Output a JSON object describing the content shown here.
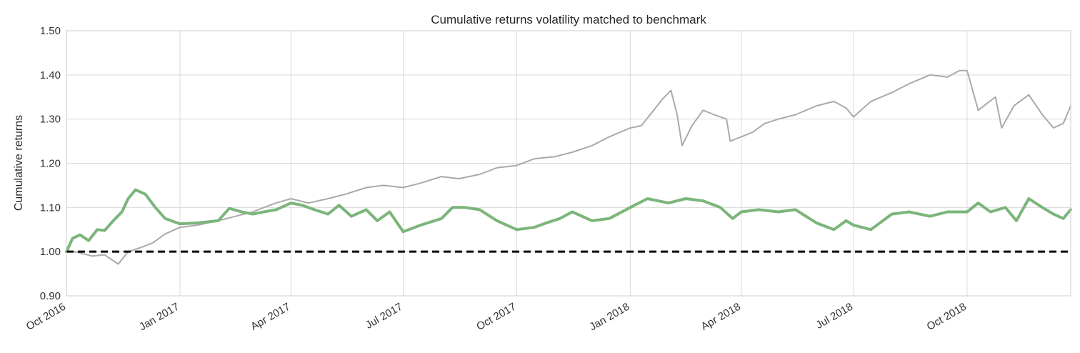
{
  "chart_data": {
    "type": "line",
    "title": "Cumulative returns volatility matched to benchmark",
    "xlabel": "",
    "ylabel": "Cumulative returns",
    "xlim": [
      "2016-10-01",
      "2018-12-24"
    ],
    "ylim": [
      0.9,
      1.5
    ],
    "grid": true,
    "legend": "none",
    "y_ticks": [
      {
        "value": 0.9,
        "label": "0.90"
      },
      {
        "value": 1.0,
        "label": "1.00"
      },
      {
        "value": 1.1,
        "label": "1.10"
      },
      {
        "value": 1.2,
        "label": "1.20"
      },
      {
        "value": 1.3,
        "label": "1.30"
      },
      {
        "value": 1.4,
        "label": "1.40"
      },
      {
        "value": 1.5,
        "label": "1.50"
      }
    ],
    "x_ticks": [
      {
        "value": "2016-10-01",
        "label": "Oct 2016"
      },
      {
        "value": "2017-01-01",
        "label": "Jan 2017"
      },
      {
        "value": "2017-04-01",
        "label": "Apr 2017"
      },
      {
        "value": "2017-07-01",
        "label": "Jul 2017"
      },
      {
        "value": "2017-10-01",
        "label": "Oct 2017"
      },
      {
        "value": "2018-01-01",
        "label": "Jan 2018"
      },
      {
        "value": "2018-04-01",
        "label": "Apr 2018"
      },
      {
        "value": "2018-07-01",
        "label": "Jul 2018"
      },
      {
        "value": "2018-10-01",
        "label": "Oct 2018"
      }
    ],
    "reference_line": {
      "y": 1.0,
      "style": "dashed",
      "color": "#000000"
    },
    "series": [
      {
        "color": "#aaaaaa",
        "x": [
          "2016-10-01",
          "2016-10-08",
          "2016-10-15",
          "2016-10-22",
          "2016-11-01",
          "2016-11-05",
          "2016-11-12",
          "2016-11-20",
          "2016-12-01",
          "2016-12-10",
          "2016-12-20",
          "2017-01-01",
          "2017-01-15",
          "2017-02-01",
          "2017-02-15",
          "2017-03-01",
          "2017-03-10",
          "2017-03-20",
          "2017-04-01",
          "2017-04-15",
          "2017-05-01",
          "2017-05-15",
          "2017-06-01",
          "2017-06-15",
          "2017-07-01",
          "2017-07-15",
          "2017-08-01",
          "2017-08-15",
          "2017-09-01",
          "2017-09-15",
          "2017-10-01",
          "2017-10-15",
          "2017-11-01",
          "2017-11-15",
          "2017-12-01",
          "2017-12-15",
          "2018-01-01",
          "2018-01-10",
          "2018-01-20",
          "2018-01-27",
          "2018-02-03",
          "2018-02-08",
          "2018-02-12",
          "2018-02-20",
          "2018-03-01",
          "2018-03-10",
          "2018-03-20",
          "2018-03-23",
          "2018-04-01",
          "2018-04-10",
          "2018-04-20",
          "2018-05-01",
          "2018-05-15",
          "2018-06-01",
          "2018-06-15",
          "2018-06-25",
          "2018-07-01",
          "2018-07-15",
          "2018-08-01",
          "2018-08-15",
          "2018-09-01",
          "2018-09-15",
          "2018-09-25",
          "2018-10-01",
          "2018-10-03",
          "2018-10-10",
          "2018-10-24",
          "2018-10-29",
          "2018-11-08",
          "2018-11-20",
          "2018-12-01",
          "2018-12-10",
          "2018-12-18",
          "2018-12-24"
        ],
        "y": [
          1.0,
          1.0,
          0.995,
          0.99,
          0.993,
          0.985,
          0.972,
          1.0,
          1.01,
          1.02,
          1.04,
          1.055,
          1.06,
          1.07,
          1.08,
          1.09,
          1.1,
          1.11,
          1.12,
          1.11,
          1.12,
          1.13,
          1.145,
          1.15,
          1.145,
          1.155,
          1.17,
          1.165,
          1.175,
          1.19,
          1.195,
          1.21,
          1.215,
          1.225,
          1.24,
          1.26,
          1.28,
          1.285,
          1.32,
          1.345,
          1.365,
          1.31,
          1.24,
          1.285,
          1.32,
          1.31,
          1.3,
          1.25,
          1.26,
          1.27,
          1.29,
          1.3,
          1.31,
          1.33,
          1.34,
          1.325,
          1.305,
          1.34,
          1.36,
          1.38,
          1.4,
          1.395,
          1.41,
          1.41,
          1.39,
          1.32,
          1.35,
          1.28,
          1.33,
          1.355,
          1.31,
          1.28,
          1.29,
          1.33
        ]
      },
      {
        "color": "#7bb57a",
        "x": [
          "2016-10-01",
          "2016-10-06",
          "2016-10-12",
          "2016-10-19",
          "2016-10-26",
          "2016-11-01",
          "2016-11-08",
          "2016-11-15",
          "2016-11-20",
          "2016-11-26",
          "2016-12-04",
          "2016-12-12",
          "2016-12-20",
          "2017-01-01",
          "2017-01-15",
          "2017-02-01",
          "2017-02-10",
          "2017-02-20",
          "2017-03-01",
          "2017-03-10",
          "2017-03-20",
          "2017-04-01",
          "2017-04-10",
          "2017-04-20",
          "2017-05-01",
          "2017-05-10",
          "2017-05-20",
          "2017-06-01",
          "2017-06-10",
          "2017-06-20",
          "2017-07-01",
          "2017-07-15",
          "2017-08-01",
          "2017-08-10",
          "2017-08-20",
          "2017-09-01",
          "2017-09-15",
          "2017-10-01",
          "2017-10-15",
          "2017-10-25",
          "2017-11-05",
          "2017-11-15",
          "2017-12-01",
          "2017-12-15",
          "2018-01-01",
          "2018-01-15",
          "2018-02-01",
          "2018-02-15",
          "2018-03-01",
          "2018-03-15",
          "2018-03-25",
          "2018-04-01",
          "2018-04-15",
          "2018-05-01",
          "2018-05-15",
          "2018-06-01",
          "2018-06-15",
          "2018-06-25",
          "2018-07-01",
          "2018-07-15",
          "2018-08-01",
          "2018-08-15",
          "2018-09-01",
          "2018-09-15",
          "2018-10-01",
          "2018-10-10",
          "2018-10-20",
          "2018-11-01",
          "2018-11-10",
          "2018-11-20",
          "2018-12-01",
          "2018-12-10",
          "2018-12-18",
          "2018-12-24"
        ],
        "y": [
          1.0,
          1.03,
          1.038,
          1.025,
          1.05,
          1.048,
          1.07,
          1.09,
          1.12,
          1.14,
          1.13,
          1.1,
          1.075,
          1.063,
          1.065,
          1.07,
          1.098,
          1.09,
          1.085,
          1.09,
          1.095,
          1.11,
          1.105,
          1.095,
          1.085,
          1.105,
          1.08,
          1.095,
          1.07,
          1.09,
          1.045,
          1.06,
          1.075,
          1.1,
          1.1,
          1.095,
          1.07,
          1.05,
          1.055,
          1.065,
          1.075,
          1.09,
          1.07,
          1.075,
          1.1,
          1.12,
          1.11,
          1.12,
          1.115,
          1.1,
          1.075,
          1.09,
          1.095,
          1.09,
          1.095,
          1.065,
          1.05,
          1.07,
          1.06,
          1.05,
          1.085,
          1.09,
          1.08,
          1.09,
          1.09,
          1.11,
          1.09,
          1.1,
          1.07,
          1.12,
          1.1,
          1.085,
          1.075,
          1.095
        ]
      }
    ]
  }
}
